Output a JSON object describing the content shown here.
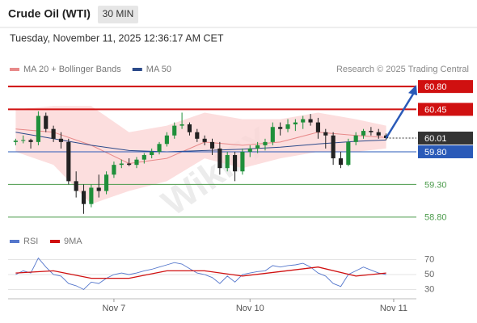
{
  "chart_data": {
    "type": "candlestick",
    "title": "Crude Oil (WTI)",
    "timeframe": "30 MIN",
    "date": "Tuesday, November 11, 2025 12:36:17 AM CET",
    "source": "Research © 2025 Trading Central",
    "watermark": "WikiFX",
    "up_color": "#1f8f3a",
    "down_color": "#222222",
    "xlim": [
      -1,
      53
    ],
    "xticks": [
      {
        "value": 13,
        "label": "Nov 7"
      },
      {
        "value": 31,
        "label": "Nov 10"
      },
      {
        "value": 50,
        "label": "Nov 11"
      }
    ],
    "ylim": [
      58.6,
      60.95
    ],
    "ohlc": [
      [
        59.95,
        60.0,
        59.9,
        59.97
      ],
      [
        59.97,
        60.05,
        59.93,
        59.98
      ],
      [
        59.98,
        60.0,
        59.85,
        59.95
      ],
      [
        59.95,
        60.42,
        59.9,
        60.35
      ],
      [
        60.35,
        60.4,
        60.1,
        60.15
      ],
      [
        60.15,
        60.2,
        59.95,
        60.0
      ],
      [
        60.0,
        60.1,
        59.85,
        59.95
      ],
      [
        59.95,
        60.0,
        59.3,
        59.35
      ],
      [
        59.35,
        59.5,
        59.1,
        59.2
      ],
      [
        59.2,
        59.3,
        58.85,
        59.0
      ],
      [
        59.0,
        59.3,
        58.95,
        59.25
      ],
      [
        59.25,
        59.45,
        59.1,
        59.2
      ],
      [
        59.2,
        59.5,
        59.15,
        59.45
      ],
      [
        59.45,
        59.65,
        59.4,
        59.6
      ],
      [
        59.6,
        59.68,
        59.55,
        59.62
      ],
      [
        59.62,
        59.7,
        59.58,
        59.6
      ],
      [
        59.6,
        59.72,
        59.55,
        59.68
      ],
      [
        59.68,
        59.78,
        59.62,
        59.75
      ],
      [
        59.75,
        59.85,
        59.7,
        59.8
      ],
      [
        59.8,
        59.95,
        59.76,
        59.92
      ],
      [
        59.92,
        60.1,
        59.88,
        60.05
      ],
      [
        60.05,
        60.25,
        60.0,
        60.2
      ],
      [
        60.2,
        60.4,
        60.15,
        60.22
      ],
      [
        60.22,
        60.25,
        60.05,
        60.1
      ],
      [
        60.1,
        60.15,
        59.95,
        60.0
      ],
      [
        60.0,
        60.05,
        59.9,
        59.95
      ],
      [
        59.95,
        60.0,
        59.75,
        59.85
      ],
      [
        59.85,
        59.95,
        59.45,
        59.55
      ],
      [
        59.55,
        59.8,
        59.5,
        59.75
      ],
      [
        59.75,
        59.8,
        59.35,
        59.5
      ],
      [
        59.5,
        59.85,
        59.45,
        59.8
      ],
      [
        59.8,
        59.9,
        59.72,
        59.85
      ],
      [
        59.85,
        59.95,
        59.78,
        59.9
      ],
      [
        59.9,
        60.0,
        59.82,
        59.95
      ],
      [
        59.95,
        60.25,
        59.9,
        60.18
      ],
      [
        60.18,
        60.25,
        60.05,
        60.15
      ],
      [
        60.15,
        60.3,
        60.1,
        60.22
      ],
      [
        60.22,
        60.3,
        60.12,
        60.25
      ],
      [
        60.25,
        60.35,
        60.15,
        60.3
      ],
      [
        60.3,
        60.38,
        60.2,
        60.25
      ],
      [
        60.25,
        60.32,
        60.0,
        60.1
      ],
      [
        60.1,
        60.15,
        59.85,
        60.05
      ],
      [
        60.05,
        60.1,
        59.6,
        59.7
      ],
      [
        59.7,
        59.8,
        59.55,
        59.6
      ],
      [
        59.6,
        60.0,
        59.58,
        59.95
      ],
      [
        59.95,
        60.1,
        59.9,
        60.05
      ],
      [
        60.05,
        60.15,
        60.0,
        60.12
      ],
      [
        60.12,
        60.18,
        60.05,
        60.1
      ],
      [
        60.1,
        60.15,
        60.0,
        60.05
      ],
      [
        60.05,
        60.08,
        59.98,
        60.01
      ]
    ],
    "series": [
      {
        "name": "MA 20 + Bollinger Bands",
        "color": "#e88a8a",
        "band_color": "#fbd6d6",
        "x": [
          0,
          5,
          10,
          15,
          20,
          25,
          30,
          35,
          40,
          45,
          49
        ],
        "values": [
          60.15,
          60.1,
          59.9,
          59.62,
          59.7,
          59.95,
          59.9,
          59.95,
          60.1,
          60.05,
          60.02
        ],
        "upper": [
          60.45,
          60.5,
          60.5,
          60.1,
          60.2,
          60.4,
          60.3,
          60.3,
          60.4,
          60.3,
          60.2
        ],
        "lower": [
          59.8,
          59.6,
          59.0,
          59.2,
          59.35,
          59.7,
          59.55,
          59.7,
          59.8,
          59.8,
          59.85
        ]
      },
      {
        "name": "MA 50",
        "color": "#2c4a8a",
        "x": [
          0,
          5,
          10,
          15,
          20,
          25,
          30,
          35,
          40,
          45,
          49
        ],
        "values": [
          60.1,
          60.0,
          59.9,
          59.82,
          59.8,
          59.82,
          59.84,
          59.87,
          59.92,
          59.96,
          59.98
        ]
      }
    ],
    "levels": [
      {
        "value": 60.8,
        "label": "60.80",
        "color": "#d01010",
        "tag": true
      },
      {
        "value": 60.45,
        "label": "60.45",
        "color": "#d01010",
        "tag": true
      },
      {
        "value": 60.01,
        "label": "60.01",
        "color": "#333333",
        "tag": true,
        "dotted": true
      },
      {
        "value": 59.8,
        "label": "59.80",
        "color": "#2a5ab8",
        "tag": true
      },
      {
        "value": 59.3,
        "label": "59.30",
        "color": "#4a9a4a",
        "tag": false
      },
      {
        "value": 58.8,
        "label": "58.80",
        "color": "#4a9a4a",
        "tag": false
      }
    ],
    "rsi": {
      "ylim": [
        23,
        77
      ],
      "yticks": [
        70,
        50,
        30
      ],
      "series": [
        {
          "name": "RSI",
          "color": "#5577cc",
          "values": [
            50,
            55,
            52,
            72,
            60,
            50,
            48,
            38,
            35,
            30,
            40,
            38,
            45,
            50,
            52,
            50,
            52,
            55,
            57,
            60,
            63,
            66,
            64,
            58,
            52,
            50,
            46,
            38,
            48,
            40,
            50,
            52,
            54,
            55,
            62,
            60,
            62,
            63,
            65,
            60,
            52,
            48,
            38,
            34,
            50,
            55,
            60,
            56,
            52,
            50
          ]
        },
        {
          "name": "9MA",
          "color": "#d01010",
          "x": [
            0,
            5,
            10,
            15,
            20,
            25,
            30,
            35,
            40,
            45,
            49
          ],
          "values": [
            52,
            55,
            45,
            45,
            55,
            55,
            48,
            54,
            60,
            48,
            52
          ]
        }
      ]
    }
  }
}
